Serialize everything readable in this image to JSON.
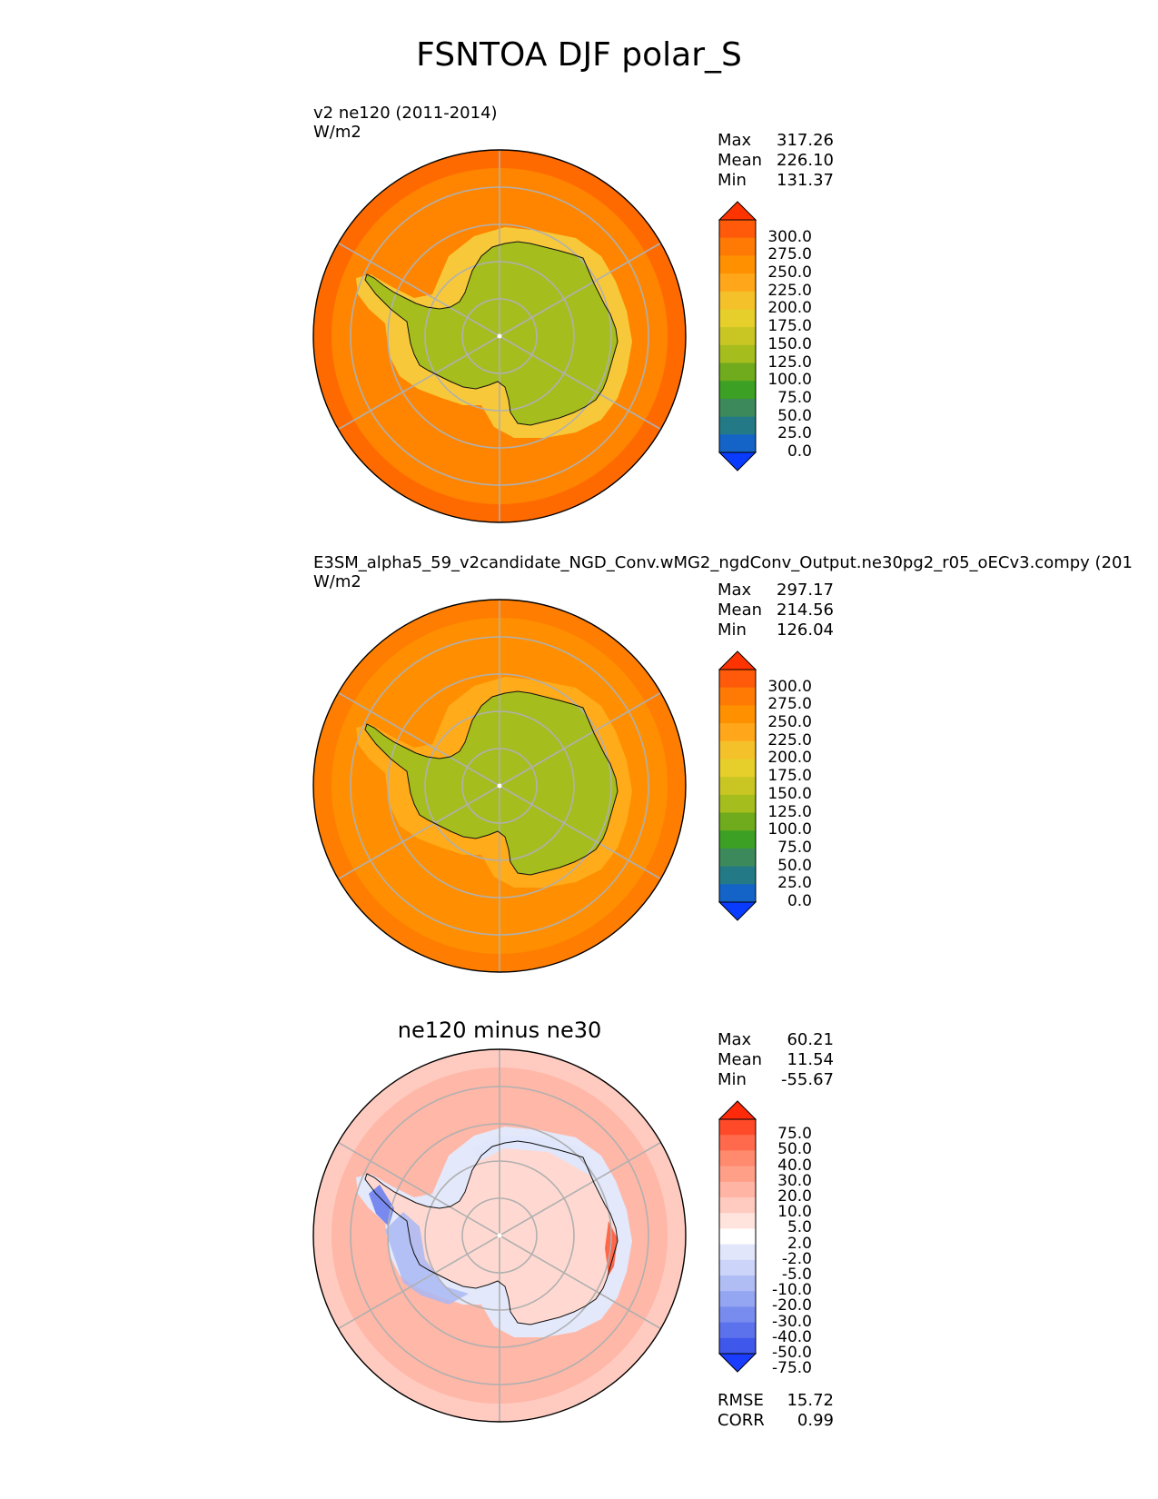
{
  "title": "FSNTOA DJF polar_S",
  "panels": [
    {
      "name": "test",
      "subtitle": "v2 ne120 (2011-2014)",
      "units": "W/m2",
      "heading": "",
      "stats": {
        "max_label": "Max",
        "max": "317.26",
        "mean_label": "Mean",
        "mean": "226.10",
        "min_label": "Min",
        "min": "131.37"
      }
    },
    {
      "name": "reference",
      "subtitle": "E3SM_alpha5_59_v2candidate_NGD_Conv.wMG2_ngdConv_Output.ne30pg2_r05_oECv3.compy (201",
      "units": "W/m2",
      "heading": "",
      "stats": {
        "max_label": "Max",
        "max": "297.17",
        "mean_label": "Mean",
        "mean": "214.56",
        "min_label": "Min",
        "min": "126.04"
      }
    },
    {
      "name": "difference",
      "subtitle": "",
      "units": "",
      "heading": "ne120 minus ne30",
      "stats": {
        "max_label": "Max",
        "max": "60.21",
        "mean_label": "Mean",
        "mean": "11.54",
        "min_label": "Min",
        "min": "-55.67"
      },
      "metrics": {
        "rmse_label": "RMSE",
        "rmse": "15.72",
        "corr_label": "CORR",
        "corr": "0.99"
      }
    }
  ],
  "chart_data": {
    "type": "heatmap",
    "projection": "south polar stereographic",
    "variable": "FSNTOA",
    "season": "DJF",
    "region": "polar_S",
    "colorbars": [
      {
        "id": "model",
        "ticks": [
          "300.0",
          "275.0",
          "250.0",
          "225.0",
          "200.0",
          "175.0",
          "150.0",
          "125.0",
          "100.0",
          "75.0",
          "50.0",
          "25.0",
          "0.0"
        ],
        "colors": [
          "#ff3300",
          "#ff5a0a",
          "#ff7a05",
          "#ff9000",
          "#ffa61a",
          "#f4c12a",
          "#e6cf2a",
          "#c9c624",
          "#a6bd1e",
          "#6fab1c",
          "#3ca024",
          "#3c8a5c",
          "#237a86",
          "#1464c8",
          "#0a3cff"
        ]
      },
      {
        "id": "diff",
        "ticks": [
          "75.0",
          "50.0",
          "40.0",
          "30.0",
          "20.0",
          "10.0",
          "5.0",
          "2.0",
          "-2.0",
          "-5.0",
          "-10.0",
          "-20.0",
          "-30.0",
          "-40.0",
          "-50.0",
          "-75.0"
        ],
        "colors": [
          "#ff2a0a",
          "#ff4a2a",
          "#ff6a4c",
          "#ff8a6e",
          "#ff9f88",
          "#ffb4a4",
          "#ffcbc0",
          "#ffe3dd",
          "#ffffff",
          "#e2e6fb",
          "#ccd4f9",
          "#b0bdf5",
          "#94a5f2",
          "#788cef",
          "#5c72ec",
          "#3f57ea",
          "#1a3cff"
        ]
      }
    ],
    "fields": [
      {
        "panel": "test",
        "background": "#ff8500",
        "outer_ring": "#ff6a00",
        "ice_shelf_ring": "#f7c93a",
        "continent": "#a6bd1e"
      },
      {
        "panel": "reference",
        "background": "#ff8f00",
        "outer_ring": "#ff7d00",
        "ice_shelf_ring": "#ffab1a",
        "continent": "#a6bd1e"
      },
      {
        "panel": "difference",
        "background": "#ffb7a7",
        "outer_ring": "#ffcbc0",
        "ice_shelf_ring": "#e3e8fb",
        "continent": "#ffd9d1"
      }
    ]
  }
}
